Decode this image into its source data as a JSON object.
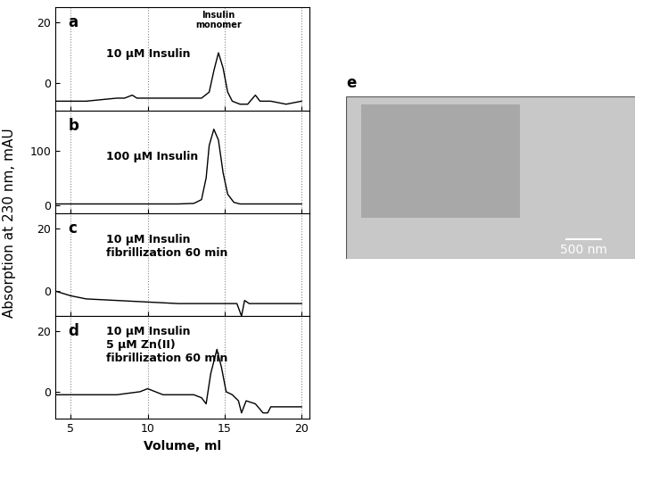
{
  "figure": {
    "xlabel": "Volume, ml",
    "ylabel": "Absorption at 230 nm, mAU"
  },
  "chart_data": [
    {
      "type": "line",
      "title": "a",
      "annotations": [
        "10 μM Insulin",
        "Insulin\nmonomer"
      ],
      "color": "#000000",
      "grid": true,
      "x": [
        4,
        5,
        6,
        7,
        8,
        8.5,
        9,
        9.3,
        10,
        11,
        12,
        13,
        13.5,
        14,
        14.3,
        14.6,
        14.9,
        15.2,
        15.5,
        16,
        16.5,
        17,
        17.3,
        18,
        19,
        20
      ],
      "values": [
        -6,
        -6,
        -6,
        -5.5,
        -5,
        -5,
        -4,
        -5,
        -5,
        -5,
        -5,
        -5,
        -5,
        -3,
        4,
        10,
        5,
        -3,
        -6,
        -7,
        -7,
        -4,
        -6,
        -6,
        -7,
        -6
      ],
      "xlim": [
        4,
        20.5
      ],
      "xticks": [
        5,
        10,
        15,
        20
      ],
      "ylim": [
        -9,
        25
      ],
      "yticks": [
        0,
        20
      ],
      "tick_labels": "y"
    },
    {
      "type": "line",
      "title": "b",
      "annotations": [
        "100 μM Insulin"
      ],
      "color": "#000000",
      "grid": true,
      "x": [
        4,
        6,
        8,
        10,
        12,
        13,
        13.5,
        13.8,
        14.0,
        14.3,
        14.6,
        14.9,
        15.2,
        15.6,
        16,
        18,
        20
      ],
      "values": [
        2,
        2,
        2,
        2,
        2,
        3,
        10,
        50,
        110,
        140,
        120,
        60,
        20,
        5,
        2,
        2,
        2
      ],
      "xlim": [
        4,
        20.5
      ],
      "xticks": [
        5,
        10,
        15,
        20
      ],
      "ylim": [
        -15,
        175
      ],
      "yticks": [
        0,
        100
      ],
      "tick_labels": "y"
    },
    {
      "type": "line",
      "title": "c",
      "annotations": [
        "10 μM Insulin\nfibrillization 60 min"
      ],
      "color": "#000000",
      "grid": true,
      "x": [
        4,
        5,
        6,
        8,
        10,
        12,
        14,
        15,
        15.8,
        16.1,
        16.3,
        16.6,
        18,
        20
      ],
      "values": [
        0,
        -1.5,
        -2.5,
        -3,
        -3.5,
        -4,
        -4,
        -4,
        -4,
        -8,
        -3,
        -4,
        -4,
        -4
      ],
      "xlim": [
        4,
        20.5
      ],
      "xticks": [
        5,
        10,
        15,
        20
      ],
      "ylim": [
        -8,
        25
      ],
      "yticks": [
        0,
        20
      ],
      "tick_labels": "y"
    },
    {
      "type": "line",
      "title": "d",
      "annotations": [
        "10 μM Insulin\n5 μM Zn(II)\nfibrillization 60 min"
      ],
      "color": "#000000",
      "grid": true,
      "x": [
        4,
        5,
        6,
        8,
        9.5,
        10,
        10.5,
        11,
        12,
        13,
        13.5,
        13.8,
        14.1,
        14.5,
        14.8,
        15.1,
        15.5,
        15.9,
        16.1,
        16.4,
        17,
        17.5,
        17.8,
        18,
        19,
        20
      ],
      "values": [
        -1,
        -1,
        -1,
        -1,
        0,
        1,
        0,
        -1,
        -1,
        -1,
        -2,
        -4,
        6,
        14,
        8,
        0,
        -1,
        -3,
        -7,
        -3,
        -4,
        -7,
        -7,
        -5,
        -5,
        -5
      ],
      "xlim": [
        4,
        20.5
      ],
      "xticks": [
        5,
        10,
        15,
        20
      ],
      "ylim": [
        -9,
        25
      ],
      "yticks": [
        0,
        20
      ]
    }
  ],
  "image": {
    "label": "e",
    "scale_bar": "500 nm"
  }
}
